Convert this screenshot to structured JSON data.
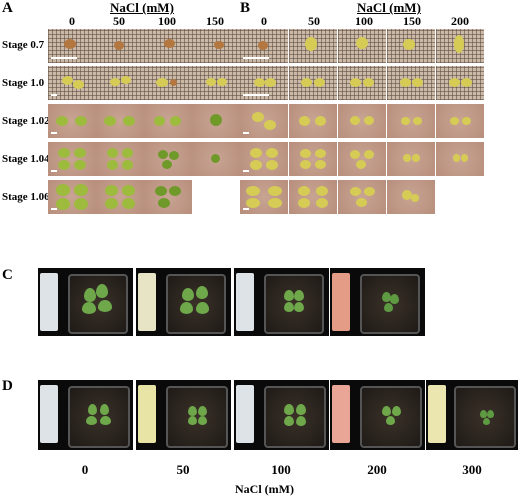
{
  "panel_a": {
    "letter": "A",
    "title": "NaCl (mM)",
    "columns": [
      "0",
      "50",
      "100",
      "150"
    ]
  },
  "panel_b": {
    "letter": "B",
    "title": "NaCl (mM)",
    "columns": [
      "0",
      "50",
      "100",
      "150",
      "200"
    ]
  },
  "stages": [
    "Stage 0.7",
    "Stage 1.0",
    "Stage 1.02",
    "Stage 1.04",
    "Stage 1.06"
  ],
  "panel_c": {
    "letter": "C"
  },
  "panel_d": {
    "letter": "D"
  },
  "bottom_axis": {
    "labels": [
      "0",
      "50",
      "100",
      "200",
      "300"
    ],
    "title": "NaCl (mM)"
  }
}
